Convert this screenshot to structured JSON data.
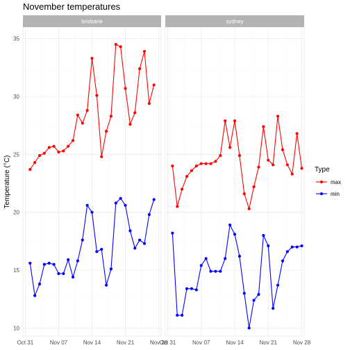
{
  "chart_data": {
    "type": "line",
    "title": "November temperatures",
    "xlabel": "",
    "ylabel": "Temperature (°C)",
    "ylim": [
      9.3,
      36.0
    ],
    "yticks": [
      10,
      15,
      20,
      25,
      30,
      35
    ],
    "x_tick_labels": [
      "Oct 31",
      "Nov 07",
      "Nov 14",
      "Nov 21",
      "Nov 28"
    ],
    "x_tick_days": [
      0,
      7,
      14,
      21,
      28
    ],
    "x_range_days": [
      -0.5,
      28.5
    ],
    "grid": true,
    "legend": {
      "title": "Type",
      "position": "right",
      "entries": [
        {
          "label": "max",
          "color": "#ff0000"
        },
        {
          "label": "min",
          "color": "#0000ff"
        }
      ]
    },
    "facets": [
      {
        "label": "brisbane",
        "series": [
          {
            "name": "max",
            "color": "#ff0000",
            "x": [
              1,
              2,
              3,
              4,
              5,
              6,
              7,
              8,
              9,
              10,
              11,
              12,
              13,
              14,
              15,
              16,
              17,
              18,
              19,
              20,
              21,
              22,
              23,
              24,
              25,
              26,
              27,
              28
            ],
            "values": [
              23.7,
              24.3,
              24.9,
              25.1,
              25.6,
              25.7,
              25.2,
              25.3,
              25.7,
              26.2,
              28.4,
              27.7,
              28.8,
              33.3,
              30.1,
              24.8,
              27.0,
              28.3,
              34.5,
              34.3,
              30.7,
              27.6,
              28.6,
              32.4,
              33.9,
              29.4,
              31.0,
              null
            ]
          },
          {
            "name": "min",
            "color": "#0000ff",
            "x": [
              1,
              2,
              3,
              4,
              5,
              6,
              7,
              8,
              9,
              10,
              11,
              12,
              13,
              14,
              15,
              16,
              17,
              18,
              19,
              20,
              21,
              22,
              23,
              24,
              25,
              26,
              27,
              28
            ],
            "values": [
              15.6,
              12.8,
              13.8,
              15.5,
              15.6,
              15.5,
              14.7,
              14.7,
              15.9,
              14.4,
              15.8,
              17.6,
              20.6,
              20.0,
              16.6,
              16.8,
              13.7,
              15.1,
              20.8,
              21.2,
              20.6,
              18.4,
              16.9,
              17.6,
              17.3,
              19.8,
              21.1,
              null
            ]
          }
        ]
      },
      {
        "label": "sydney",
        "series": [
          {
            "name": "max",
            "color": "#ff0000",
            "x": [
              1,
              2,
              3,
              4,
              5,
              6,
              7,
              8,
              9,
              10,
              11,
              12,
              13,
              14,
              15,
              16,
              17,
              18,
              19,
              20,
              21,
              22,
              23,
              24,
              25,
              26,
              27,
              28
            ],
            "values": [
              24.0,
              20.5,
              22.0,
              23.1,
              23.6,
              24.0,
              24.2,
              24.2,
              24.2,
              24.4,
              24.9,
              27.9,
              25.6,
              27.9,
              24.9,
              21.6,
              20.3,
              22.2,
              23.9,
              27.4,
              24.5,
              24.1,
              28.3,
              25.4,
              24.1,
              23.3,
              26.8,
              23.8
            ]
          },
          {
            "name": "min",
            "color": "#0000ff",
            "x": [
              1,
              2,
              3,
              4,
              5,
              6,
              7,
              8,
              9,
              10,
              11,
              12,
              13,
              14,
              15,
              16,
              17,
              18,
              19,
              20,
              21,
              22,
              23,
              24,
              25,
              26,
              27,
              28
            ],
            "values": [
              18.2,
              11.1,
              11.1,
              13.4,
              13.4,
              13.3,
              15.4,
              16.0,
              14.9,
              14.9,
              14.9,
              16.0,
              18.9,
              18.1,
              16.2,
              13.0,
              10.0,
              12.4,
              12.9,
              18.0,
              17.1,
              11.7,
              13.7,
              15.8,
              16.6,
              17.0,
              17.0,
              17.1
            ]
          }
        ]
      }
    ]
  }
}
